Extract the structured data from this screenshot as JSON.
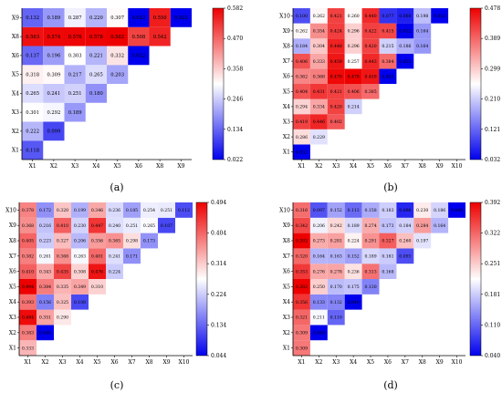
{
  "colors": {
    "low": "#0000ee",
    "mid": "#ffffff",
    "high": "#ee0000",
    "axis": "#000000"
  },
  "chart_data": [
    {
      "type": "heatmap",
      "panel_label": "(a)",
      "x_labels": [
        "X1",
        "X2",
        "X3",
        "X4",
        "X5",
        "X6",
        "X8",
        "X9"
      ],
      "y_labels": [
        "X1",
        "X2",
        "X3",
        "X4",
        "X5",
        "X6",
        "X8",
        "X9"
      ],
      "colorbar": {
        "min": 0.022,
        "max": 0.582,
        "ticks": [
          "0.582",
          "0.470",
          "0.358",
          "0.246",
          "0.134",
          "0.022"
        ]
      },
      "rows": [
        [
          "0.118"
        ],
        [
          "0.222",
          "0.099"
        ],
        [
          "0.301",
          "0.292",
          "0.189"
        ],
        [
          "0.265",
          "0.241",
          "0.251",
          "0.180"
        ],
        [
          "0.318",
          "0.309",
          "0.217",
          "0.265",
          "0.203"
        ],
        [
          "0.137",
          "0.196",
          "0.303",
          "0.221",
          "0.332",
          "0.022"
        ],
        [
          "0.563",
          "0.574",
          "0.576",
          "0.578",
          "0.582",
          "0.508",
          "0.542"
        ],
        [
          "0.132",
          "0.189",
          "0.287",
          "0.220",
          "0.307",
          "0.022",
          "0.550",
          "0.022"
        ]
      ]
    },
    {
      "type": "heatmap",
      "panel_label": "(b)",
      "x_labels": [
        "X1",
        "X2",
        "X3",
        "X4",
        "X5",
        "X6",
        "X7",
        "X8",
        "X9",
        "X10"
      ],
      "y_labels": [
        "X1",
        "X2",
        "X3",
        "X4",
        "X5",
        "X6",
        "X7",
        "X8",
        "X9",
        "X10"
      ],
      "colorbar": {
        "min": 0.032,
        "max": 0.478,
        "ticks": [
          "0.478",
          "0.389",
          "0.299",
          "0.210",
          "0.121",
          "0.032"
        ]
      },
      "rows": [
        [
          "0.032"
        ],
        [
          "0.286",
          "0.229"
        ],
        [
          "0.419",
          "0.446",
          "0.402"
        ],
        [
          "0.294",
          "0.334",
          "0.420",
          "0.214"
        ],
        [
          "0.404",
          "0.431",
          "0.421",
          "0.406",
          "0.385"
        ],
        [
          "0.362",
          "0.368",
          "0.470",
          "0.478",
          "0.459",
          "0.032"
        ],
        [
          "0.406",
          "0.333",
          "0.459",
          "0.257",
          "0.443",
          "0.384",
          "0.032"
        ],
        [
          "0.184",
          "0.304",
          "0.448",
          "0.296",
          "0.420",
          "0.215",
          "0.186",
          "0.164"
        ],
        [
          "0.262",
          "0.354",
          "0.424",
          "0.296",
          "0.422",
          "0.415",
          "0.032",
          "0.164"
        ],
        [
          "0.100",
          "0.262",
          "0.421",
          "0.260",
          "0.440",
          "0.077",
          "0.060",
          "0.198",
          "0.032"
        ]
      ]
    },
    {
      "type": "heatmap",
      "panel_label": "(c)",
      "x_labels": [
        "X1",
        "X2",
        "X3",
        "X4",
        "X5",
        "X6",
        "X7",
        "X8",
        "X9",
        "X10"
      ],
      "y_labels": [
        "X1",
        "X2",
        "X3",
        "X4",
        "X5",
        "X6",
        "X7",
        "X8",
        "X9",
        "X10"
      ],
      "colorbar": {
        "min": 0.044,
        "max": 0.494,
        "ticks": [
          "0.494",
          "0.404",
          "0.314",
          "0.224",
          "0.134",
          "0.044"
        ]
      },
      "rows": [
        [
          "0.333"
        ],
        [
          "0.383",
          "0.044"
        ],
        [
          "0.484",
          "0.351",
          "0.290"
        ],
        [
          "0.393",
          "0.156",
          "0.325",
          "0.108"
        ],
        [
          "0.494",
          "0.384",
          "0.335",
          "0.349",
          "0.310"
        ],
        [
          "0.410",
          "0.343",
          "0.435",
          "0.308",
          "0.476",
          "0.224"
        ],
        [
          "0.382",
          "0.261",
          "0.368",
          "0.263",
          "0.401",
          "0.241",
          "0.171"
        ],
        [
          "0.405",
          "0.223",
          "0.327",
          "0.206",
          "0.356",
          "0.365",
          "0.298",
          "0.173"
        ],
        [
          "0.368",
          "0.216",
          "0.410",
          "0.230",
          "0.447",
          "0.240",
          "0.251",
          "0.265",
          "0.107"
        ],
        [
          "0.378",
          "0.172",
          "0.320",
          "0.199",
          "0.346",
          "0.236",
          "0.185",
          "0.254",
          "0.251",
          "0.112"
        ]
      ]
    },
    {
      "type": "heatmap",
      "panel_label": "(d)",
      "x_labels": [
        "X1",
        "X2",
        "X3",
        "X4",
        "X5",
        "X6",
        "X7",
        "X8",
        "X9",
        "X10"
      ],
      "y_labels": [
        "X1",
        "X2",
        "X3",
        "X4",
        "X5",
        "X6",
        "X7",
        "X8",
        "X9",
        "X10"
      ],
      "colorbar": {
        "min": 0.04,
        "max": 0.392,
        "ticks": [
          "0.392",
          "0.322",
          "0.251",
          "0.181",
          "0.110",
          "0.040"
        ]
      },
      "rows": [
        [
          "0.309"
        ],
        [
          "0.309",
          "0.040"
        ],
        [
          "0.321",
          "0.211",
          "0.110"
        ],
        [
          "0.356",
          "0.133",
          "0.132",
          "0.040"
        ],
        [
          "0.392",
          "0.250",
          "0.170",
          "0.175",
          "0.130"
        ],
        [
          "0.353",
          "0.276",
          "0.278",
          "0.236",
          "0.313",
          "0.168"
        ],
        [
          "0.320",
          "0.164",
          "0.163",
          "0.152",
          "0.189",
          "0.181",
          "0.093"
        ],
        [
          "0.392",
          "0.273",
          "0.281",
          "0.224",
          "0.291",
          "0.327",
          "0.260",
          "0.197"
        ],
        [
          "0.342",
          "0.206",
          "0.242",
          "0.189",
          "0.274",
          "0.173",
          "0.184",
          "0.284",
          "0.164"
        ],
        [
          "0.316",
          "0.097",
          "0.152",
          "0.113",
          "0.158",
          "0.183",
          "0.066",
          "0.230",
          "0.186",
          "0.040"
        ]
      ]
    }
  ]
}
